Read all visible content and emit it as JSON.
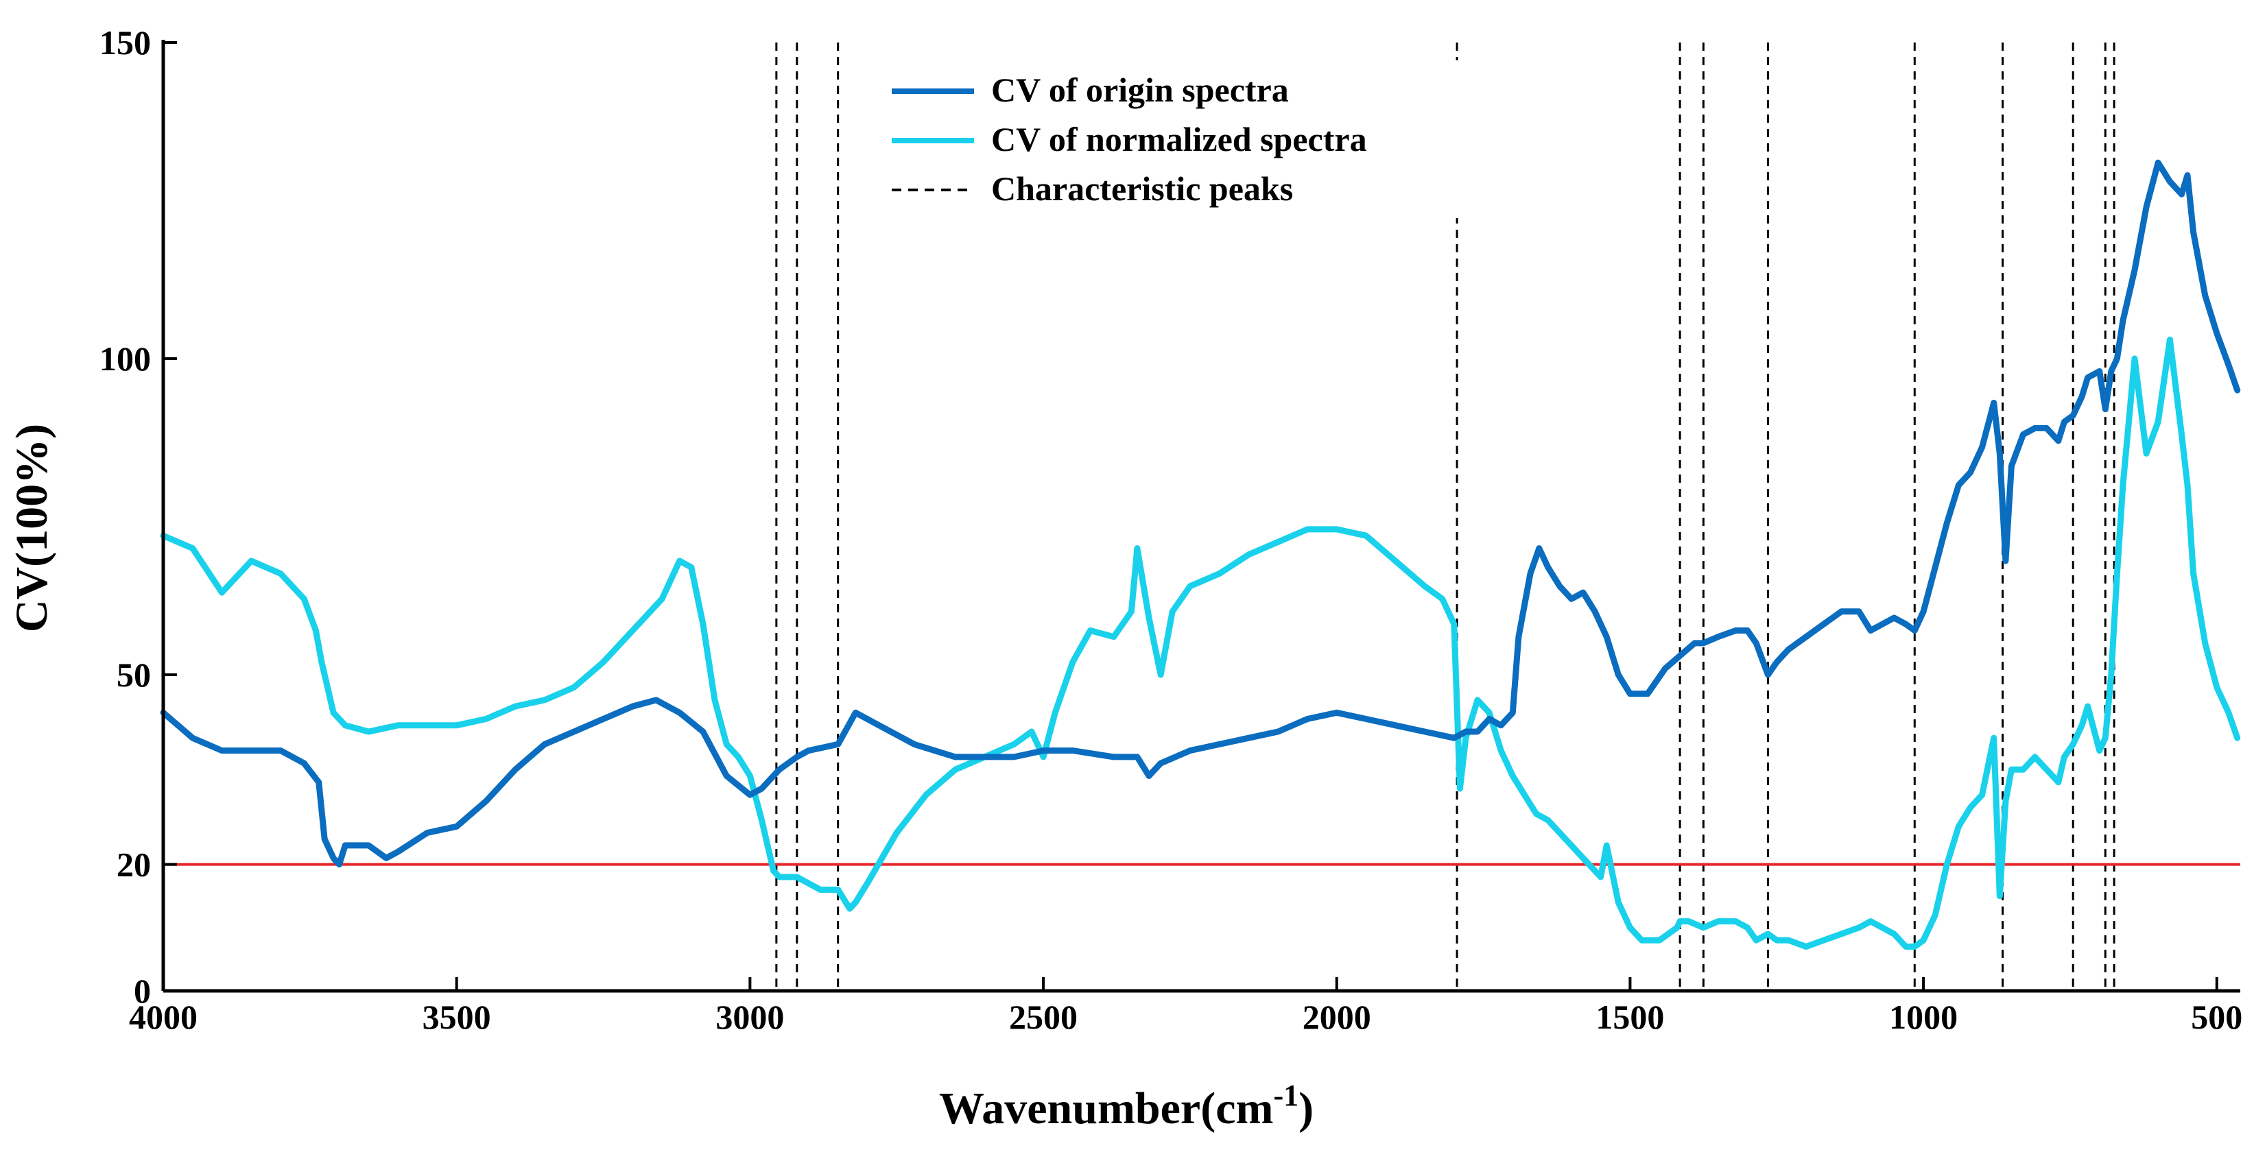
{
  "chart_data": {
    "type": "line",
    "title": "",
    "xlabel": "Wavenumber(cm",
    "xlabel_sup": "-1",
    "xlabel_suffix": ")",
    "ylabel": "CV(100%)",
    "xlim": [
      4000,
      460
    ],
    "ylim": [
      0,
      150
    ],
    "x_ticks": [
      {
        "value": 4000,
        "label": "4000"
      },
      {
        "value": 3500,
        "label": "3500"
      },
      {
        "value": 3000,
        "label": "3000"
      },
      {
        "value": 2500,
        "label": "2500"
      },
      {
        "value": 2000,
        "label": "2000"
      },
      {
        "value": 1500,
        "label": "1500"
      },
      {
        "value": 1000,
        "label": "1000"
      },
      {
        "value": 500,
        "label": "500"
      }
    ],
    "y_ticks": [
      {
        "value": 0,
        "label": "0"
      },
      {
        "value": 20,
        "label": "20"
      },
      {
        "value": 50,
        "label": "50"
      },
      {
        "value": 100,
        "label": "100"
      },
      {
        "value": 150,
        "label": "150"
      }
    ],
    "threshold": {
      "value": 20,
      "color": "#e8262b"
    },
    "characteristic_peaks": [
      2955,
      2920,
      2850,
      1795,
      1415,
      1375,
      1265,
      1015,
      865,
      745,
      690,
      675
    ],
    "legend": [
      {
        "label": "CV of origin spectra",
        "color": "#0b6dbf",
        "style": "solid"
      },
      {
        "label": "CV of normalized spectra",
        "color": "#19d1eb",
        "style": "solid"
      },
      {
        "label": "Characteristic peaks",
        "color": "#000000",
        "style": "dashed"
      }
    ],
    "legend_position": "top-center",
    "series": [
      {
        "name": "CV of origin spectra",
        "color": "#0b6dbf",
        "x": [
          4000,
          3950,
          3900,
          3850,
          3800,
          3760,
          3735,
          3725,
          3710,
          3700,
          3690,
          3650,
          3620,
          3600,
          3550,
          3500,
          3450,
          3400,
          3350,
          3300,
          3250,
          3200,
          3160,
          3120,
          3080,
          3040,
          3000,
          2980,
          2950,
          2920,
          2900,
          2850,
          2820,
          2780,
          2720,
          2650,
          2600,
          2550,
          2500,
          2450,
          2380,
          2340,
          2320,
          2300,
          2250,
          2200,
          2150,
          2100,
          2050,
          2000,
          1950,
          1900,
          1850,
          1800,
          1780,
          1760,
          1740,
          1720,
          1700,
          1690,
          1670,
          1655,
          1640,
          1620,
          1600,
          1580,
          1560,
          1540,
          1520,
          1500,
          1470,
          1440,
          1415,
          1390,
          1375,
          1350,
          1320,
          1300,
          1285,
          1265,
          1250,
          1230,
          1200,
          1170,
          1140,
          1110,
          1090,
          1070,
          1050,
          1030,
          1015,
          1000,
          980,
          960,
          940,
          920,
          900,
          880,
          870,
          860,
          850,
          830,
          810,
          790,
          770,
          760,
          745,
          730,
          720,
          700,
          690,
          680,
          670,
          660,
          640,
          620,
          600,
          580,
          560,
          550,
          540,
          520,
          500,
          480,
          465
        ],
        "y": [
          44,
          40,
          38,
          38,
          38,
          36,
          33,
          24,
          21,
          20,
          23,
          23,
          21,
          22,
          25,
          26,
          30,
          35,
          39,
          41,
          43,
          45,
          46,
          44,
          41,
          34,
          31,
          32,
          35,
          37,
          38,
          39,
          44,
          42,
          39,
          37,
          37,
          37,
          38,
          38,
          37,
          37,
          34,
          36,
          38,
          39,
          40,
          41,
          43,
          44,
          43,
          42,
          41,
          40,
          41,
          41,
          43,
          42,
          44,
          56,
          66,
          70,
          67,
          64,
          62,
          63,
          60,
          56,
          50,
          47,
          47,
          51,
          53,
          55,
          55,
          56,
          57,
          57,
          55,
          50,
          52,
          54,
          56,
          58,
          60,
          60,
          57,
          58,
          59,
          58,
          57,
          60,
          67,
          74,
          80,
          82,
          86,
          93,
          85,
          68,
          83,
          88,
          89,
          89,
          87,
          90,
          91,
          94,
          97,
          98,
          92,
          98,
          100,
          106,
          114,
          124,
          131,
          128,
          126,
          129,
          120,
          110,
          104,
          99,
          95
        ]
      },
      {
        "name": "CV of normalized spectra",
        "color": "#19d1eb",
        "x": [
          4000,
          3950,
          3900,
          3880,
          3850,
          3800,
          3760,
          3740,
          3730,
          3720,
          3710,
          3700,
          3690,
          3650,
          3600,
          3550,
          3500,
          3450,
          3400,
          3350,
          3300,
          3250,
          3200,
          3150,
          3120,
          3100,
          3080,
          3060,
          3040,
          3020,
          3000,
          2980,
          2960,
          2950,
          2920,
          2900,
          2880,
          2850,
          2830,
          2820,
          2800,
          2750,
          2700,
          2650,
          2600,
          2550,
          2520,
          2500,
          2480,
          2450,
          2420,
          2380,
          2350,
          2340,
          2320,
          2300,
          2280,
          2250,
          2200,
          2150,
          2100,
          2050,
          2000,
          1950,
          1900,
          1850,
          1820,
          1800,
          1795,
          1790,
          1780,
          1760,
          1740,
          1720,
          1700,
          1680,
          1660,
          1640,
          1620,
          1600,
          1580,
          1560,
          1550,
          1540,
          1520,
          1500,
          1480,
          1450,
          1420,
          1415,
          1400,
          1375,
          1350,
          1320,
          1300,
          1285,
          1265,
          1250,
          1230,
          1200,
          1170,
          1140,
          1110,
          1090,
          1070,
          1050,
          1030,
          1015,
          1000,
          980,
          960,
          940,
          920,
          900,
          880,
          870,
          860,
          850,
          830,
          810,
          790,
          770,
          760,
          745,
          730,
          720,
          700,
          690,
          680,
          670,
          660,
          640,
          620,
          600,
          580,
          560,
          550,
          540,
          520,
          500,
          480,
          465
        ],
        "y": [
          72,
          70,
          63,
          65,
          68,
          66,
          62,
          57,
          52,
          48,
          44,
          43,
          42,
          41,
          42,
          42,
          42,
          43,
          45,
          46,
          48,
          52,
          57,
          62,
          68,
          67,
          58,
          46,
          39,
          37,
          34,
          27,
          19,
          18,
          18,
          17,
          16,
          16,
          13,
          14,
          17,
          25,
          31,
          35,
          37,
          39,
          41,
          37,
          44,
          52,
          57,
          56,
          60,
          70,
          59,
          50,
          60,
          64,
          66,
          69,
          71,
          73,
          73,
          72,
          68,
          64,
          62,
          58,
          45,
          32,
          40,
          46,
          44,
          38,
          34,
          31,
          28,
          27,
          25,
          23,
          21,
          19,
          18,
          23,
          14,
          10,
          8,
          8,
          10,
          11,
          11,
          10,
          11,
          11,
          10,
          8,
          9,
          8,
          8,
          7,
          8,
          9,
          10,
          11,
          10,
          9,
          7,
          7,
          8,
          12,
          20,
          26,
          29,
          31,
          40,
          15,
          30,
          35,
          35,
          37,
          35,
          33,
          37,
          39,
          42,
          45,
          38,
          40,
          50,
          66,
          80,
          100,
          85,
          90,
          103,
          88,
          80,
          66,
          55,
          48,
          44,
          40
        ]
      }
    ]
  }
}
